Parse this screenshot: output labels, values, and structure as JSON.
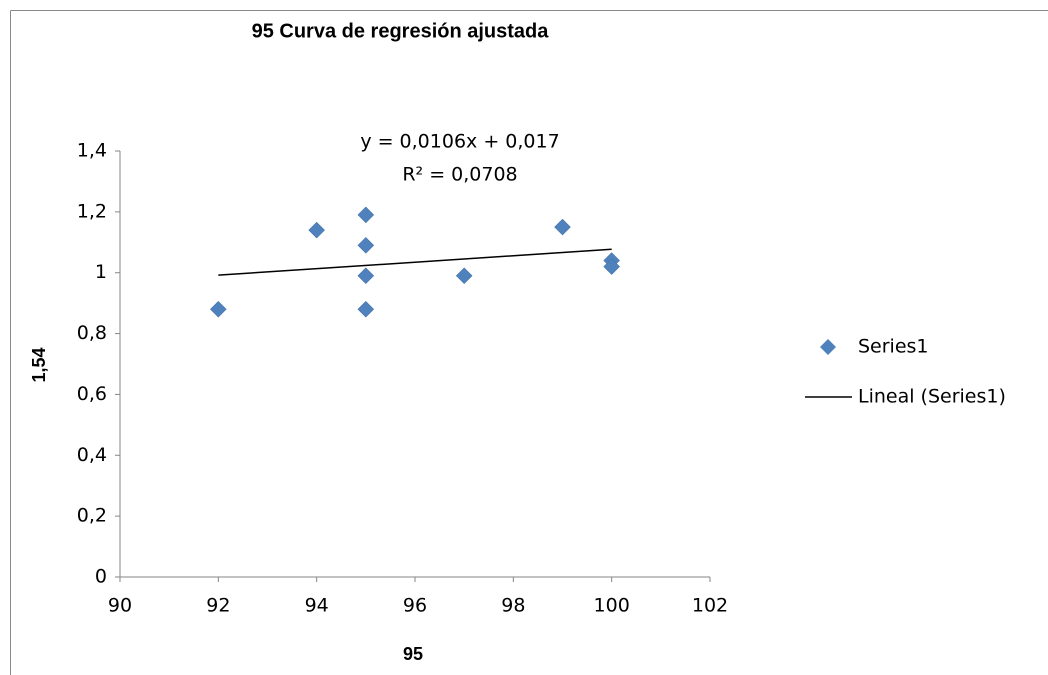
{
  "chart_data": {
    "type": "scatter",
    "title": "95 Curva de regresión ajustada",
    "x_label": "95",
    "y_label": "1,54",
    "annotations": [
      "y = 0,0106x + 0,017",
      "R² = 0,0708"
    ],
    "series": [
      {
        "name": "Series1",
        "color": "#4f81bd",
        "mode": "markers",
        "x": [
          92,
          94,
          95,
          95,
          95,
          95,
          97,
          99,
          100,
          100
        ],
        "values": [
          0.88,
          1.14,
          1.19,
          1.09,
          0.99,
          0.88,
          0.99,
          1.15,
          1.04,
          1.02
        ]
      },
      {
        "name": "Lineal (Series1)",
        "color": "#000000",
        "mode": "line",
        "x": [
          92,
          100
        ],
        "values": [
          0.992,
          1.077
        ]
      }
    ],
    "xlim": [
      90,
      102
    ],
    "xticks": [
      90,
      92,
      94,
      96,
      98,
      100,
      102
    ],
    "ylim": [
      0,
      1.4
    ],
    "yticks": [
      0,
      {
        "value": 0.2,
        "label": "0,2"
      },
      {
        "value": 0.4,
        "label": "0,4"
      },
      {
        "value": 0.6,
        "label": "0,6"
      },
      {
        "value": 0.8,
        "label": "0,8"
      },
      1,
      {
        "value": 1.2,
        "label": "1,2"
      },
      {
        "value": 1.4,
        "label": "1,4"
      }
    ],
    "grid": false,
    "legend": "right"
  }
}
